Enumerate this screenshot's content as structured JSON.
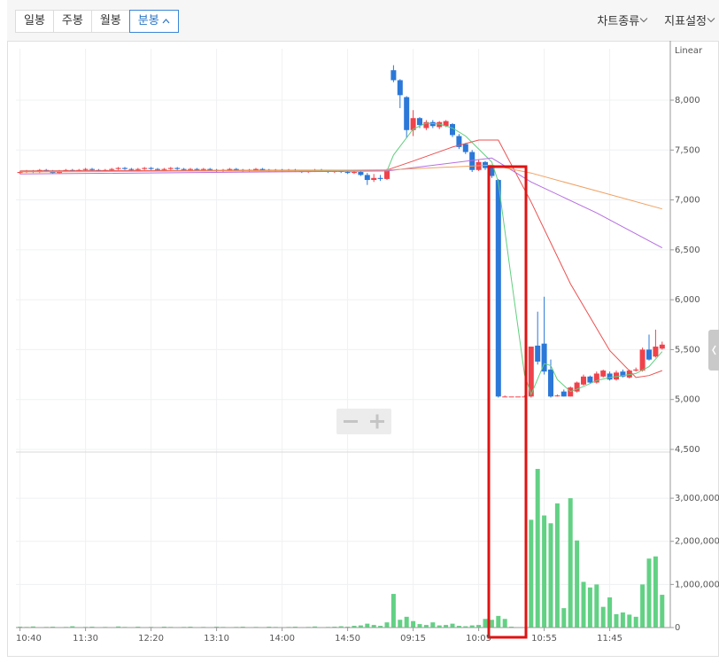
{
  "toolbar": {
    "tabs": [
      "일봉",
      "주봉",
      "월봉",
      "분봉"
    ],
    "active_tab": 3,
    "menus": [
      "차트종류",
      "지표설정"
    ]
  },
  "chart_data": {
    "type": "candlestick",
    "y_scale_label": "Linear",
    "categories": [
      "10:40",
      null,
      null,
      null,
      null,
      null,
      null,
      null,
      null,
      null,
      "11:30",
      null,
      null,
      null,
      null,
      null,
      null,
      null,
      null,
      null,
      "12:20",
      null,
      null,
      null,
      null,
      null,
      null,
      null,
      null,
      null,
      "13:10",
      null,
      null,
      null,
      null,
      null,
      null,
      null,
      null,
      null,
      "14:00",
      null,
      null,
      null,
      null,
      null,
      null,
      null,
      null,
      null,
      "14:50",
      null,
      null,
      null,
      null,
      null,
      null,
      null,
      null,
      null,
      "09:15",
      null,
      null,
      null,
      null,
      null,
      null,
      null,
      null,
      null,
      "10:05",
      null,
      null,
      null,
      null,
      null,
      null,
      null,
      null,
      null,
      "10:55",
      null,
      null,
      null,
      null,
      null,
      null,
      null,
      null,
      null,
      "11:45",
      null,
      null,
      null,
      null,
      null,
      null,
      null,
      null
    ],
    "open": [
      7270,
      7280,
      7290,
      7280,
      7300,
      7290,
      7270,
      7290,
      7300,
      7290,
      7300,
      7310,
      7300,
      7290,
      7300,
      7310,
      7320,
      7310,
      7300,
      7310,
      7320,
      7310,
      7300,
      7310,
      7320,
      7310,
      7300,
      7310,
      7300,
      7310,
      7300,
      7290,
      7300,
      7310,
      7300,
      7290,
      7300,
      7310,
      7300,
      7290,
      7300,
      7290,
      7300,
      7290,
      7280,
      7290,
      7300,
      7290,
      7280,
      7290,
      7280,
      7270,
      7280,
      7250,
      7200,
      7220,
      7210,
      8300,
      8200,
      8030,
      7700,
      7820,
      7720,
      7780,
      7730,
      7740,
      7760,
      7640,
      7560,
      7480,
      7300,
      7380,
      7330,
      7200,
      5030,
      5030,
      5030,
      5030,
      5030,
      5540,
      5560,
      5300,
      5040,
      5080,
      5030,
      5080,
      5150,
      5230,
      5170,
      5230,
      5260,
      5200,
      5280,
      5220,
      5290,
      5290,
      5500,
      5430,
      5510
    ],
    "high": [
      7290,
      7300,
      7300,
      7310,
      7310,
      7300,
      7300,
      7310,
      7310,
      7310,
      7320,
      7320,
      7310,
      7310,
      7320,
      7330,
      7330,
      7320,
      7320,
      7330,
      7330,
      7320,
      7320,
      7330,
      7330,
      7320,
      7320,
      7320,
      7320,
      7320,
      7310,
      7310,
      7320,
      7320,
      7310,
      7310,
      7320,
      7320,
      7310,
      7310,
      7310,
      7310,
      7310,
      7300,
      7300,
      7310,
      7310,
      7300,
      7300,
      7300,
      7290,
      7290,
      7290,
      7270,
      7260,
      7250,
      7310,
      8350,
      8210,
      8040,
      7900,
      7830,
      7800,
      7800,
      7790,
      7800,
      7770,
      7660,
      7570,
      7500,
      7400,
      7390,
      7350,
      7210,
      5040,
      5030,
      5030,
      5040,
      5530,
      5880,
      6030,
      5400,
      5050,
      5100,
      5130,
      5180,
      5250,
      5240,
      5280,
      5300,
      5280,
      5290,
      5300,
      5300,
      5320,
      5520,
      5650,
      5700,
      5580
    ],
    "low": [
      7260,
      7270,
      7270,
      7270,
      7280,
      7260,
      7260,
      7280,
      7280,
      7280,
      7290,
      7290,
      7280,
      7280,
      7290,
      7300,
      7300,
      7290,
      7290,
      7300,
      7300,
      7290,
      7290,
      7300,
      7300,
      7290,
      7290,
      7290,
      7290,
      7290,
      7280,
      7280,
      7290,
      7290,
      7280,
      7280,
      7290,
      7290,
      7280,
      7280,
      7280,
      7280,
      7280,
      7270,
      7270,
      7280,
      7280,
      7270,
      7270,
      7270,
      7260,
      7260,
      7240,
      7150,
      7180,
      7190,
      7200,
      8180,
      7920,
      7620,
      7640,
      7720,
      7700,
      7720,
      7710,
      7730,
      7630,
      7510,
      7460,
      7280,
      7290,
      7300,
      7220,
      5020,
      5030,
      5030,
      5030,
      5030,
      5020,
      5350,
      5250,
      5020,
      5030,
      5030,
      5030,
      5070,
      5140,
      5160,
      5160,
      5220,
      5190,
      5190,
      5220,
      5210,
      5280,
      5280,
      5390,
      5420,
      5500
    ],
    "close": [
      7280,
      7290,
      7280,
      7300,
      7290,
      7270,
      7290,
      7300,
      7290,
      7300,
      7310,
      7300,
      7290,
      7300,
      7310,
      7320,
      7310,
      7300,
      7310,
      7320,
      7310,
      7300,
      7310,
      7320,
      7310,
      7300,
      7310,
      7300,
      7310,
      7300,
      7290,
      7300,
      7310,
      7300,
      7290,
      7300,
      7310,
      7300,
      7290,
      7300,
      7290,
      7300,
      7290,
      7280,
      7290,
      7300,
      7290,
      7280,
      7290,
      7280,
      7270,
      7280,
      7250,
      7200,
      7220,
      7210,
      7300,
      8200,
      8050,
      7700,
      7820,
      7750,
      7780,
      7740,
      7780,
      7790,
      7650,
      7530,
      7480,
      7300,
      7380,
      7320,
      7240,
      5030,
      5030,
      5030,
      5030,
      5030,
      5530,
      5380,
      5280,
      5030,
      5040,
      5030,
      5120,
      5170,
      5230,
      5170,
      5260,
      5290,
      5200,
      5270,
      5230,
      5290,
      5300,
      5500,
      5400,
      5530,
      5550
    ],
    "volume": [
      20000,
      15000,
      25000,
      10000,
      15000,
      20000,
      10000,
      15000,
      30000,
      10000,
      15000,
      20000,
      10000,
      15000,
      10000,
      25000,
      15000,
      10000,
      20000,
      10000,
      15000,
      10000,
      20000,
      15000,
      10000,
      15000,
      20000,
      10000,
      15000,
      10000,
      20000,
      15000,
      10000,
      15000,
      20000,
      10000,
      15000,
      10000,
      20000,
      15000,
      10000,
      15000,
      20000,
      10000,
      15000,
      25000,
      10000,
      15000,
      20000,
      30000,
      20000,
      40000,
      50000,
      90000,
      60000,
      40000,
      120000,
      780000,
      180000,
      250000,
      150000,
      80000,
      60000,
      120000,
      50000,
      60000,
      90000,
      40000,
      30000,
      50000,
      60000,
      200000,
      180000,
      270000,
      200000,
      20000,
      0,
      0,
      2500000,
      3680000,
      2600000,
      2420000,
      2880000,
      450000,
      3000000,
      2020000,
      1060000,
      930000,
      1000000,
      480000,
      700000,
      310000,
      350000,
      300000,
      250000,
      1000000,
      1600000,
      1650000,
      760000
    ],
    "up_color": "#f0424b",
    "down_color": "#2b78d8",
    "volume_color": "#62d184",
    "moving_averages": [
      {
        "color": "#5fcf7e",
        "x": [
          0,
          56,
          57,
          60,
          62,
          64,
          66,
          68,
          70,
          72,
          73,
          75,
          77,
          78,
          80,
          81,
          82,
          84,
          86,
          88,
          90,
          92,
          94,
          96,
          98
        ],
        "values": [
          7290,
          7290,
          7450,
          7710,
          7770,
          7760,
          7720,
          7640,
          7510,
          7380,
          7180,
          6200,
          5250,
          5050,
          5360,
          5340,
          5200,
          5080,
          5130,
          5190,
          5220,
          5240,
          5260,
          5330,
          5480
        ]
      },
      {
        "color": "#ec5050",
        "x": [
          0,
          56,
          60,
          66,
          70,
          73,
          78,
          84,
          90,
          94,
          96,
          98
        ],
        "values": [
          7290,
          7300,
          7390,
          7530,
          7600,
          7600,
          6980,
          6160,
          5490,
          5220,
          5240,
          5290
        ]
      },
      {
        "color": "#b56ee0",
        "x": [
          0,
          56,
          72,
          78,
          88,
          98
        ],
        "values": [
          7260,
          7290,
          7420,
          7180,
          6870,
          6520
        ]
      },
      {
        "color": "#f0a060",
        "x": [
          0,
          56,
          72,
          78,
          88,
          98
        ],
        "values": [
          7280,
          7300,
          7350,
          7270,
          7090,
          6910
        ]
      }
    ],
    "ylim": [
      4500,
      8515
    ],
    "yticks": [
      {
        "value": 4500,
        "label": "4,500"
      },
      {
        "value": 5000,
        "label": "5,000"
      },
      {
        "value": 5500,
        "label": "5,500"
      },
      {
        "value": 6000,
        "label": "6,000"
      },
      {
        "value": 6500,
        "label": "6,500"
      },
      {
        "value": 7000,
        "label": "7,000"
      },
      {
        "value": 7500,
        "label": "7,500"
      },
      {
        "value": 8000,
        "label": "8,000"
      }
    ],
    "volume_ylim": [
      0,
      4030000
    ],
    "volume_yticks": [
      0,
      {
        "value": 1000000,
        "label": "1,000,000"
      },
      {
        "value": 2000000,
        "label": "2,000,000"
      },
      {
        "value": 3000000,
        "label": "3,000,000"
      }
    ],
    "grid": true
  }
}
